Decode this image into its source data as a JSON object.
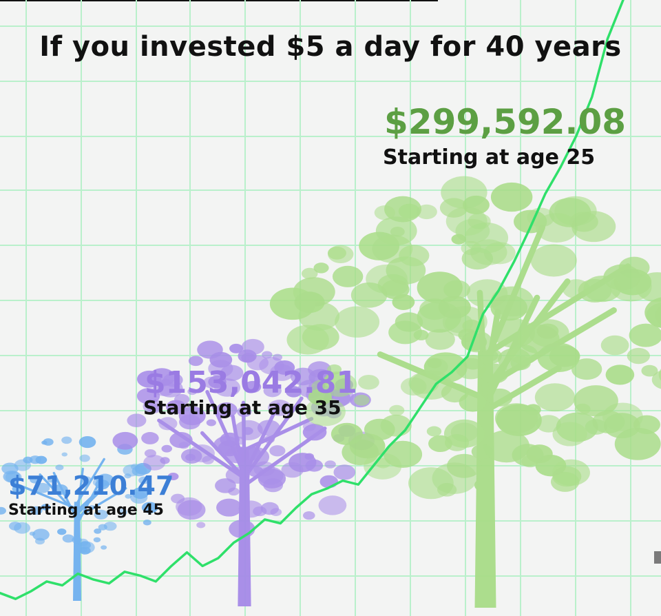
{
  "title": "If you invested $5 a day for 40 years",
  "chart_data": {
    "type": "line",
    "title": "If you invested $5 a day for 40 years",
    "series": [
      {
        "name": "Starting at age 45",
        "value_label": "$71,210.47",
        "value": 71210.47,
        "start_age": 45,
        "color": "#3c7fd6"
      },
      {
        "name": "Starting at age 35",
        "value_label": "$153,042.81",
        "value": 153042.81,
        "start_age": 35,
        "color": "#9a7be3"
      },
      {
        "name": "Starting at age 25",
        "value_label": "$299,592.08",
        "value": 299592.08,
        "start_age": 25,
        "color": "#5c9f43"
      }
    ],
    "growth_line": {
      "color": "#2fe06a",
      "note": "illustrative rising portfolio-value line; no axis values shown",
      "values": [
        4,
        1,
        5,
        10,
        8,
        14,
        11,
        9,
        15,
        13,
        10,
        18,
        25,
        18,
        22,
        30,
        35,
        42,
        40,
        48,
        55,
        58,
        62,
        60,
        70,
        80,
        88,
        100,
        112,
        118,
        126,
        148,
        160,
        175,
        192,
        210,
        224,
        240,
        260,
        290,
        310
      ]
    },
    "grid": true,
    "xlabel": "",
    "ylabel": ""
  },
  "colors": {
    "grid": "#b9f0cb",
    "tree_green": "#a8dc87",
    "tree_purple": "#a68ae8",
    "tree_blue": "#6fb0ef"
  }
}
